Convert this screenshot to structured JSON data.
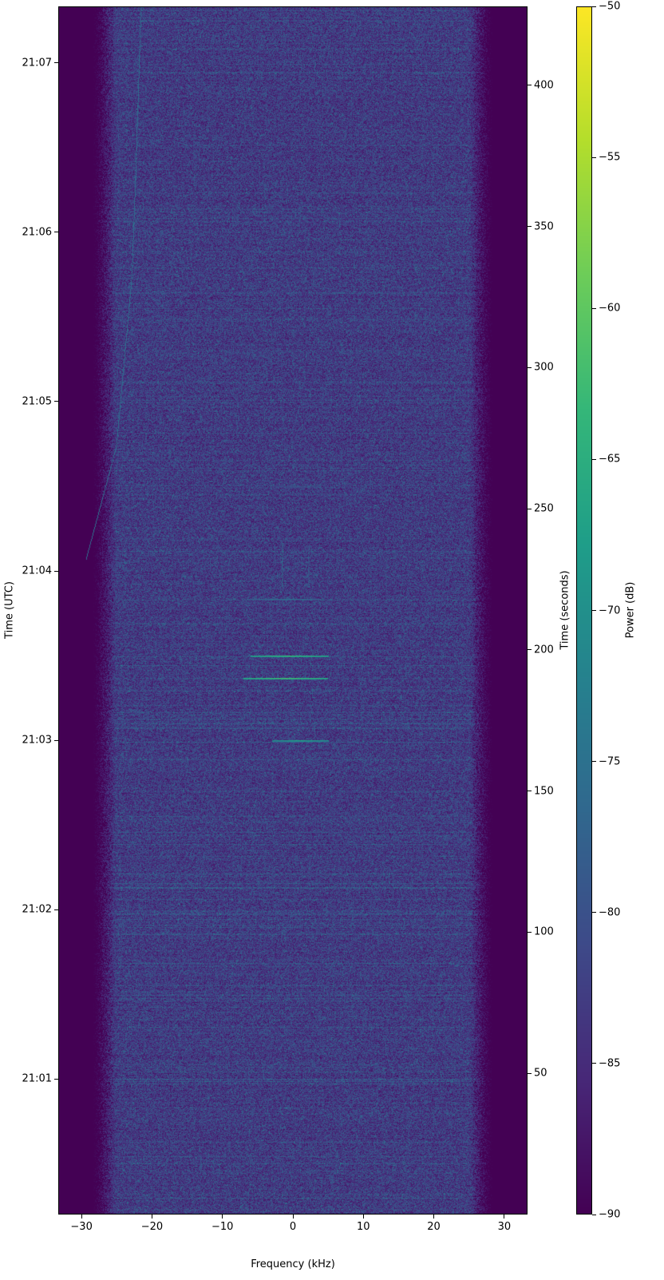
{
  "chart_data": {
    "type": "heatmap",
    "subtype": "spectrogram",
    "xlabel": "Frequency (kHz)",
    "ylabel_left": "Time (UTC)",
    "ylabel_right": "Time (seconds)",
    "colorbar_label": "Power (dB)",
    "colormap": "viridis",
    "xlim": [
      -33.3,
      33.3
    ],
    "ylim_seconds": [
      0,
      428
    ],
    "clim": [
      -90,
      -50
    ],
    "x_ticks": [
      -30,
      -20,
      -10,
      0,
      10,
      20,
      30
    ],
    "x_tick_labels": [
      "−30",
      "−20",
      "−10",
      "0",
      "10",
      "20",
      "30"
    ],
    "right_ticks": [
      50,
      100,
      150,
      200,
      250,
      300,
      350,
      400
    ],
    "right_tick_labels": [
      "50",
      "100",
      "150",
      "200",
      "250",
      "300",
      "350",
      "400"
    ],
    "left_ticks_seconds": [
      48,
      108,
      168,
      228,
      288,
      348,
      408
    ],
    "left_tick_labels": [
      "21:01",
      "21:02",
      "21:03",
      "21:04",
      "21:05",
      "21:06",
      "21:07"
    ],
    "colorbar_ticks": [
      -90,
      -85,
      -80,
      -75,
      -70,
      -65,
      -60,
      -55,
      -50
    ],
    "colorbar_tick_labels": [
      "−90",
      "−85",
      "−80",
      "−75",
      "−70",
      "−65",
      "−60",
      "−55",
      "−50"
    ],
    "noise_floor_db": -90,
    "passband_noise_db": -84,
    "passband_khz": [
      -27,
      27
    ],
    "drifting_carrier": {
      "power_db": -76,
      "points": [
        [
          -29.4,
          232
        ],
        [
          -25.1,
          272
        ],
        [
          -22.9,
          332
        ],
        [
          -22.3,
          373
        ],
        [
          -21.6,
          428
        ]
      ]
    },
    "bursts": [
      {
        "time_s": 190,
        "f_start_khz": -7,
        "f_end_khz": 5,
        "power_db": -62
      },
      {
        "time_s": 198,
        "f_start_khz": -6,
        "f_end_khz": 5,
        "power_db": -63
      },
      {
        "time_s": 168,
        "f_start_khz": -3,
        "f_end_khz": 5,
        "power_db": -67
      },
      {
        "time_s": 218,
        "f_start_khz": -6,
        "f_end_khz": 4,
        "power_db": -75
      },
      {
        "time_s": 258,
        "f_start_khz": -3,
        "f_end_khz": 4,
        "power_db": -78
      }
    ],
    "vertical_traces": [
      {
        "freq_khz": -1.5,
        "t_start_s": 222,
        "t_end_s": 238,
        "power_db": -76
      },
      {
        "freq_khz": 2.2,
        "t_start_s": 222,
        "t_end_s": 235,
        "power_db": -78
      }
    ]
  }
}
